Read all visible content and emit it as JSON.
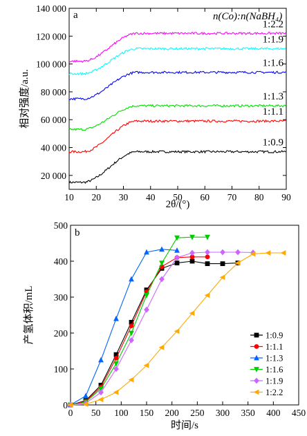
{
  "chart_data": [
    {
      "panel": "a",
      "type": "line",
      "xlabel": "2θ/(°)",
      "ylabel": "相对强度/a.u.",
      "xlim": [
        10,
        90
      ],
      "ylim": [
        10000,
        140000
      ],
      "xticks": [
        "10",
        "20",
        "30",
        "40",
        "50",
        "60",
        "70",
        "80",
        "90"
      ],
      "yticks": [
        "20 000",
        "40 000",
        "60 000",
        "80 000",
        "100 000",
        "120 000",
        "140 000"
      ],
      "legend_title": "n(Co):n(NaBH₄)",
      "series": [
        {
          "name": "1:0.9",
          "color": "#000000",
          "start": 15000,
          "plateau": 37000,
          "x0": 15,
          "x1": 35
        },
        {
          "name": "1:1.1",
          "color": "#ff0000",
          "start": 37000,
          "plateau": 59000,
          "x0": 15,
          "x1": 35
        },
        {
          "name": "1:1.3",
          "color": "#00e000",
          "start": 53000,
          "plateau": 70000,
          "x0": 15,
          "x1": 35
        },
        {
          "name": "1:1.6",
          "color": "#0000ff",
          "start": 75000,
          "plateau": 94000,
          "x0": 15,
          "x1": 35
        },
        {
          "name": "1:1.9",
          "color": "#00ffff",
          "start": 93000,
          "plateau": 111000,
          "x0": 15,
          "x1": 35
        },
        {
          "name": "1:2.2",
          "color": "#ff00ff",
          "start": 102000,
          "plateau": 122000,
          "x0": 15,
          "x1": 35
        }
      ]
    },
    {
      "panel": "b",
      "type": "line",
      "xlabel": "时间/s",
      "ylabel": "产氢体积/mL",
      "xlim": [
        0,
        450
      ],
      "ylim": [
        0,
        500
      ],
      "xticks": [
        "0",
        "50",
        "100",
        "150",
        "200",
        "250",
        "300",
        "350",
        "400",
        "450"
      ],
      "yticks": [
        "0",
        "100",
        "200",
        "300",
        "400",
        "500"
      ],
      "legend_position": "bottom-right",
      "series": [
        {
          "name": "1:0.9",
          "color": "#000000",
          "marker": "square",
          "x": [
            0,
            30,
            60,
            90,
            120,
            150,
            180,
            210,
            240,
            270,
            300,
            330
          ],
          "y": [
            0,
            12,
            55,
            140,
            230,
            320,
            380,
            395,
            400,
            393,
            393,
            395
          ]
        },
        {
          "name": "1:1.1",
          "color": "#ff0000",
          "marker": "circle",
          "x": [
            0,
            30,
            60,
            90,
            120,
            150,
            180,
            210,
            240,
            270
          ],
          "y": [
            0,
            10,
            50,
            130,
            220,
            315,
            385,
            410,
            412,
            412
          ]
        },
        {
          "name": "1:1.3",
          "color": "#0066ff",
          "marker": "triangle-up",
          "x": [
            0,
            30,
            60,
            90,
            120,
            150,
            180,
            210
          ],
          "y": [
            0,
            25,
            125,
            240,
            350,
            425,
            433,
            430
          ]
        },
        {
          "name": "1:1.6",
          "color": "#00cc00",
          "marker": "triangle-down",
          "x": [
            0,
            30,
            60,
            90,
            120,
            150,
            180,
            210,
            240,
            270
          ],
          "y": [
            0,
            8,
            45,
            115,
            200,
            305,
            395,
            465,
            467,
            467
          ]
        },
        {
          "name": "1:1.9",
          "color": "#cc66ff",
          "marker": "diamond",
          "x": [
            0,
            30,
            60,
            90,
            120,
            150,
            180,
            210,
            240,
            270,
            300,
            330,
            360
          ],
          "y": [
            0,
            5,
            35,
            100,
            180,
            265,
            350,
            410,
            423,
            425,
            425,
            425,
            424
          ]
        },
        {
          "name": "1:2.2",
          "color": "#ffaa00",
          "marker": "triangle-left",
          "x": [
            0,
            30,
            60,
            90,
            120,
            150,
            180,
            210,
            240,
            270,
            300,
            330,
            360,
            390,
            420
          ],
          "y": [
            0,
            2,
            15,
            35,
            70,
            110,
            160,
            205,
            255,
            305,
            355,
            395,
            420,
            423,
            423
          ]
        }
      ]
    }
  ]
}
